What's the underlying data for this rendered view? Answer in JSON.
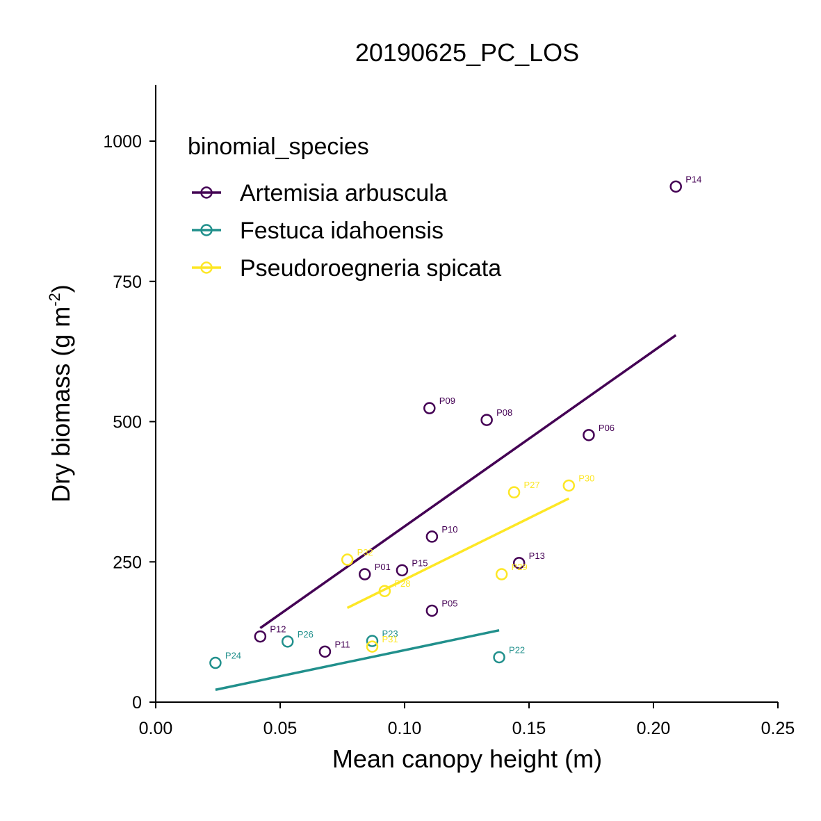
{
  "chart_data": {
    "type": "scatter",
    "title": "20190625_PC_LOS",
    "xlabel": "Mean canopy height (m)",
    "ylabel": "Dry biomass (g m",
    "ylabel_superscript": "-2",
    "ylabel_suffix": ")",
    "xlim": [
      0,
      0.25
    ],
    "ylim": [
      0,
      1100
    ],
    "x_ticks": [
      0,
      0.05,
      0.1,
      0.15,
      0.2,
      0.25
    ],
    "x_tick_labels": [
      "0.00",
      "0.05",
      "0.10",
      "0.15",
      "0.20",
      "0.25"
    ],
    "y_ticks": [
      0,
      250,
      500,
      750,
      1000
    ],
    "y_tick_labels": [
      "0",
      "250",
      "500",
      "750",
      "1000"
    ],
    "grid": false,
    "legend": {
      "title": "binomial_species",
      "position": "top-left"
    },
    "series": [
      {
        "name": "Artemisia arbuscula",
        "color": "#440154",
        "points": [
          {
            "label": "P01",
            "x": 0.084,
            "y": 228
          },
          {
            "label": "P05",
            "x": 0.111,
            "y": 163
          },
          {
            "label": "P06",
            "x": 0.174,
            "y": 476
          },
          {
            "label": "P08",
            "x": 0.133,
            "y": 503
          },
          {
            "label": "P09",
            "x": 0.11,
            "y": 524
          },
          {
            "label": "P10",
            "x": 0.111,
            "y": 295
          },
          {
            "label": "P11",
            "x": 0.068,
            "y": 90
          },
          {
            "label": "P12",
            "x": 0.042,
            "y": 117
          },
          {
            "label": "P13",
            "x": 0.146,
            "y": 248
          },
          {
            "label": "P14",
            "x": 0.209,
            "y": 919
          },
          {
            "label": "P15",
            "x": 0.099,
            "y": 235
          }
        ],
        "fit": {
          "x": [
            0.042,
            0.209
          ],
          "y": [
            132,
            654
          ]
        }
      },
      {
        "name": "Festuca idahoensis",
        "color": "#21908C",
        "points": [
          {
            "label": "P22",
            "x": 0.138,
            "y": 80
          },
          {
            "label": "P23",
            "x": 0.087,
            "y": 109
          },
          {
            "label": "P24",
            "x": 0.024,
            "y": 70
          },
          {
            "label": "P26",
            "x": 0.053,
            "y": 108
          }
        ],
        "fit": {
          "x": [
            0.024,
            0.138
          ],
          "y": [
            22,
            128
          ]
        }
      },
      {
        "name": "Pseudoroegneria spicata",
        "color": "#FDE725",
        "points": [
          {
            "label": "P27",
            "x": 0.144,
            "y": 374
          },
          {
            "label": "P28",
            "x": 0.092,
            "y": 198
          },
          {
            "label": "P29",
            "x": 0.139,
            "y": 228
          },
          {
            "label": "P30",
            "x": 0.166,
            "y": 386
          },
          {
            "label": "P31",
            "x": 0.087,
            "y": 99
          },
          {
            "label": "P32",
            "x": 0.077,
            "y": 254
          }
        ],
        "fit": {
          "x": [
            0.077,
            0.166
          ],
          "y": [
            168,
            363
          ]
        }
      }
    ]
  }
}
